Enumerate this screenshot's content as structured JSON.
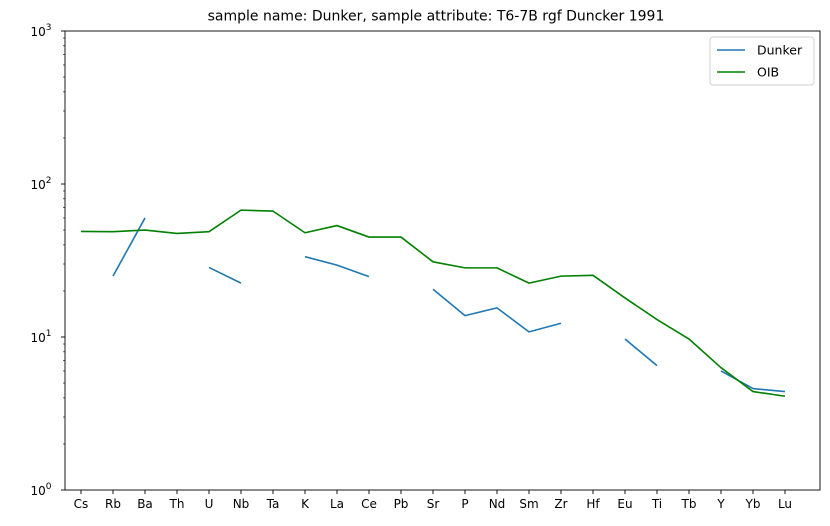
{
  "chart_data": {
    "type": "line",
    "title": "sample name: Dunker, sample attribute: T6-7B rgf Duncker 1991",
    "xlabel": "",
    "ylabel": "",
    "yscale": "log",
    "ylim": [
      1,
      1000
    ],
    "yticks": [
      {
        "value": 1,
        "base": "10",
        "exp": "0"
      },
      {
        "value": 10,
        "base": "10",
        "exp": "1"
      },
      {
        "value": 100,
        "base": "10",
        "exp": "2"
      },
      {
        "value": 1000,
        "base": "10",
        "exp": "3"
      }
    ],
    "grid": false,
    "legend_position": "top-right",
    "categories": [
      "Cs",
      "Rb",
      "Ba",
      "Th",
      "U",
      "Nb",
      "Ta",
      "K",
      "La",
      "Ce",
      "Pb",
      "Sr",
      "P",
      "Nd",
      "Sm",
      "Zr",
      "Hf",
      "Eu",
      "Ti",
      "Tb",
      "Y",
      "Yb",
      "Lu"
    ],
    "series": [
      {
        "name": "Dunker",
        "color": "#1f77b4",
        "values": [
          null,
          25,
          60,
          null,
          28.5,
          22.5,
          null,
          33.5,
          29.5,
          24.8,
          null,
          20.5,
          13.8,
          15.5,
          10.8,
          12.3,
          null,
          9.7,
          6.5,
          null,
          6.0,
          4.6,
          4.4
        ]
      },
      {
        "name": "OIB",
        "color": "#008000",
        "values": [
          49,
          48.8,
          50,
          47.5,
          48.8,
          67.5,
          66.5,
          48,
          53.5,
          45,
          45,
          31,
          28.3,
          28.3,
          22.5,
          25,
          25.3,
          18,
          13,
          9.7,
          6.3,
          4.4,
          4.1
        ]
      }
    ]
  }
}
